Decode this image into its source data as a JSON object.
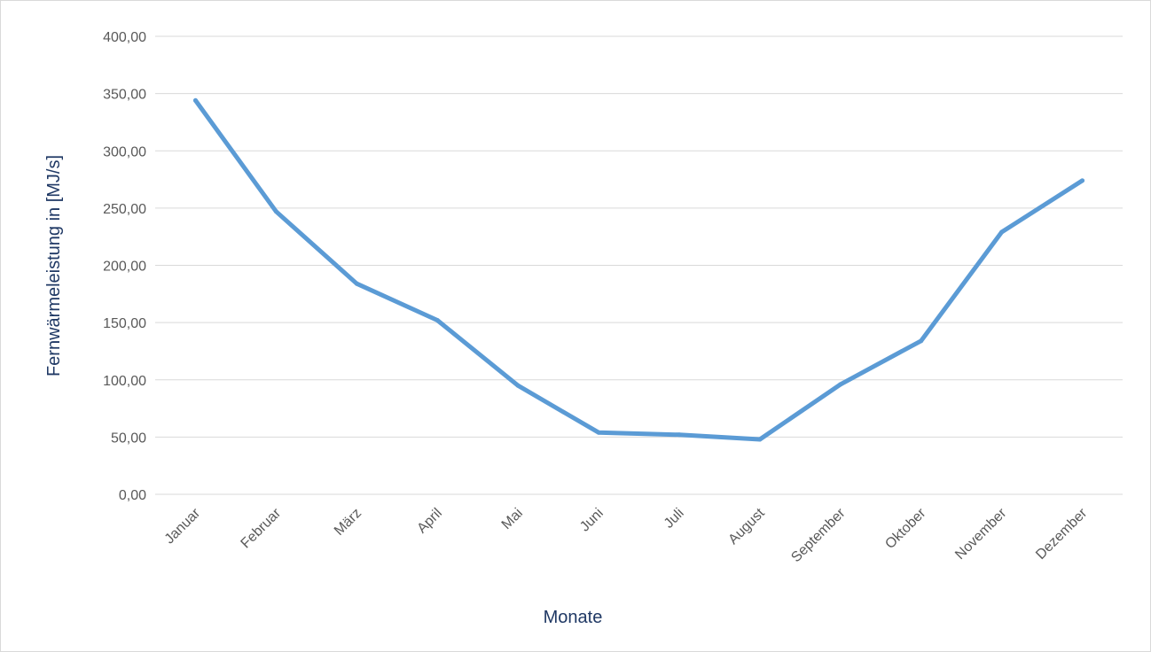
{
  "chart_data": {
    "type": "line",
    "title": "",
    "xlabel": "Monate",
    "ylabel": "Fernwärmeleistung in [MJ/s]",
    "categories": [
      "Januar",
      "Februar",
      "März",
      "April",
      "Mai",
      "Juni",
      "Juli",
      "August",
      "September",
      "Oktober",
      "November",
      "Dezember"
    ],
    "series": [
      {
        "values": [
          344,
          247,
          184,
          152,
          95,
          54,
          52,
          48,
          96,
          134,
          229,
          274
        ],
        "color": "#5b9bd5"
      }
    ],
    "ylim": [
      0,
      400
    ],
    "yticks": [
      {
        "value": 0,
        "label": "0,00"
      },
      {
        "value": 50,
        "label": "50,00"
      },
      {
        "value": 100,
        "label": "100,00"
      },
      {
        "value": 150,
        "label": "150,00"
      },
      {
        "value": 200,
        "label": "200,00"
      },
      {
        "value": 250,
        "label": "250,00"
      },
      {
        "value": 300,
        "label": "300,00"
      },
      {
        "value": 350,
        "label": "350,00"
      },
      {
        "value": 400,
        "label": "400,00"
      }
    ],
    "grid": true,
    "legend": "none"
  }
}
